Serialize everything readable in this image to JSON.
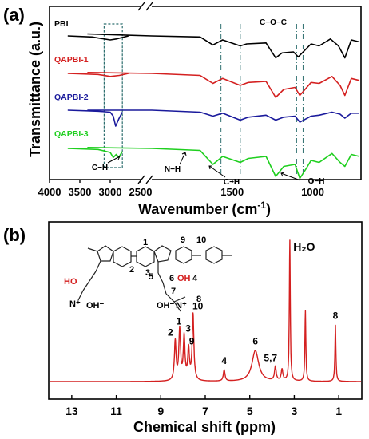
{
  "chart_data": [
    {
      "panel_label": "(a)",
      "type": "line",
      "xlabel_text": "Wavenumber (cm",
      "xlabel_sup": "-1",
      "xlabel_close": ")",
      "ylabel": "Transmittance (a.u.)",
      "x_ticks": [
        "4000",
        "3500",
        "3000",
        "2500",
        "1500",
        "1000"
      ],
      "x_tick_values": [
        4000,
        3500,
        3000,
        2500,
        1500,
        1000
      ],
      "x_axis_break": {
        "segments": [
          [
            4000,
            2500
          ],
          [
            2000,
            700
          ]
        ]
      },
      "series": [
        {
          "name": "PBI",
          "color": "#000000",
          "offset": 0,
          "points": [
            [
              3700,
              0
            ],
            [
              3300,
              -1
            ],
            [
              3000,
              -4
            ],
            [
              2900,
              -3
            ],
            [
              2700,
              0
            ],
            [
              2400,
              2
            ],
            [
              2000,
              0
            ],
            [
              1700,
              -1
            ],
            [
              1620,
              -9
            ],
            [
              1560,
              -4
            ],
            [
              1450,
              -10
            ],
            [
              1410,
              -8
            ],
            [
              1290,
              -7
            ],
            [
              1230,
              -22
            ],
            [
              1190,
              -17
            ],
            [
              1120,
              -16
            ],
            [
              1090,
              -21
            ],
            [
              1010,
              -8
            ],
            [
              960,
              -10
            ],
            [
              890,
              -3
            ],
            [
              840,
              -10
            ],
            [
              800,
              -22
            ],
            [
              760,
              -4
            ],
            [
              710,
              -6
            ]
          ]
        },
        {
          "name": "QAPBI-1",
          "color": "#d42020",
          "offset": 1,
          "points": [
            [
              3700,
              0
            ],
            [
              3200,
              -1
            ],
            [
              3000,
              -3
            ],
            [
              2850,
              -2
            ],
            [
              2700,
              0
            ],
            [
              2400,
              1
            ],
            [
              2000,
              0
            ],
            [
              1700,
              -2
            ],
            [
              1620,
              -10
            ],
            [
              1560,
              -5
            ],
            [
              1450,
              -12
            ],
            [
              1400,
              -9
            ],
            [
              1290,
              -8
            ],
            [
              1230,
              -24
            ],
            [
              1180,
              -16
            ],
            [
              1110,
              -14
            ],
            [
              1080,
              -22
            ],
            [
              1010,
              -9
            ],
            [
              960,
              -10
            ],
            [
              880,
              -3
            ],
            [
              830,
              -12
            ],
            [
              800,
              -22
            ],
            [
              760,
              -5
            ],
            [
              710,
              -7
            ]
          ]
        },
        {
          "name": "QAPBI-2",
          "color": "#1a1a9c",
          "offset": 2,
          "points": [
            [
              3700,
              0
            ],
            [
              3200,
              -1
            ],
            [
              3000,
              -2
            ],
            [
              2950,
              -6
            ],
            [
              2910,
              -16
            ],
            [
              2860,
              -9
            ],
            [
              2800,
              -2
            ],
            [
              2400,
              0
            ],
            [
              2000,
              0
            ],
            [
              1700,
              -2
            ],
            [
              1620,
              -6
            ],
            [
              1560,
              -3
            ],
            [
              1450,
              -10
            ],
            [
              1400,
              -7
            ],
            [
              1290,
              -5
            ],
            [
              1230,
              -10
            ],
            [
              1180,
              -7
            ],
            [
              1110,
              -6
            ],
            [
              1080,
              -12
            ],
            [
              1010,
              -6
            ],
            [
              960,
              -5
            ],
            [
              880,
              -2
            ],
            [
              830,
              -4
            ],
            [
              800,
              -8
            ],
            [
              760,
              -3
            ],
            [
              710,
              -3
            ]
          ]
        },
        {
          "name": "QAPBI-3",
          "color": "#1fcf1f",
          "offset": 3,
          "points": [
            [
              3700,
              0
            ],
            [
              3200,
              -1
            ],
            [
              3000,
              -4
            ],
            [
              2950,
              -9
            ],
            [
              2900,
              -6
            ],
            [
              2860,
              -9
            ],
            [
              2800,
              -3
            ],
            [
              2400,
              1
            ],
            [
              2000,
              0
            ],
            [
              1700,
              -2
            ],
            [
              1620,
              -16
            ],
            [
              1560,
              -8
            ],
            [
              1450,
              -14
            ],
            [
              1400,
              -10
            ],
            [
              1290,
              -8
            ],
            [
              1230,
              -28
            ],
            [
              1180,
              -18
            ],
            [
              1110,
              -16
            ],
            [
              1080,
              -30
            ],
            [
              1040,
              -20
            ],
            [
              1010,
              -12
            ],
            [
              960,
              -14
            ],
            [
              880,
              -5
            ],
            [
              830,
              -14
            ],
            [
              800,
              -18
            ],
            [
              760,
              -6
            ],
            [
              710,
              -8
            ]
          ]
        }
      ],
      "annotations": [
        {
          "text": "C−O−C",
          "x": 1100
        },
        {
          "text": "C−H",
          "x": 2990
        },
        {
          "text": "N−H",
          "x": 1600
        },
        {
          "text": "C−H",
          "x": 1400
        },
        {
          "text": "O−H",
          "x": 950
        }
      ],
      "reference_lines": [
        1570,
        1450,
        1100,
        1060
      ],
      "highlight_box": [
        3100,
        2800
      ]
    },
    {
      "panel_label": "(b)",
      "type": "line",
      "xlabel": "Chemical shift (ppm)",
      "x_ticks": [
        "13",
        "11",
        "9",
        "7",
        "5",
        "3",
        "1"
      ],
      "x_tick_values": [
        13,
        11,
        9,
        7,
        5,
        3,
        1
      ],
      "xlim": [
        14,
        0
      ],
      "line_color": "#d42020",
      "peaks": [
        {
          "ppm": 8.35,
          "height": 0.28,
          "label": "2"
        },
        {
          "ppm": 8.15,
          "height": 0.36,
          "label": "1"
        },
        {
          "ppm": 7.95,
          "height": 0.31,
          "label": "3"
        },
        {
          "ppm": 7.75,
          "height": 0.22,
          "label": "9"
        },
        {
          "ppm": 7.55,
          "height": 0.47,
          "label": "10"
        },
        {
          "ppm": 6.15,
          "height": 0.08,
          "label": "4"
        },
        {
          "ppm": 4.75,
          "height": 0.22,
          "label": "6"
        },
        {
          "ppm": 3.85,
          "height": 0.1,
          "label": "5,7"
        },
        {
          "ppm": 3.55,
          "height": 0.08,
          "label": ""
        },
        {
          "ppm": 3.2,
          "height": 1.0,
          "label": "H₂O"
        },
        {
          "ppm": 2.5,
          "height": 0.5,
          "label": ""
        },
        {
          "ppm": 1.15,
          "height": 0.4,
          "label": "8"
        }
      ],
      "structure_labels": {
        "n1": "1",
        "n2": "2",
        "n3": "3",
        "n9": "9",
        "n10": "10",
        "n5": "5",
        "n6": "6",
        "n4": "4",
        "n7": "7",
        "n8": "8",
        "ho": "HO",
        "oh": "OH",
        "ohm": "OH⁻",
        "n_plus": "N⁺",
        "n_plus2": "N⁺"
      }
    }
  ]
}
